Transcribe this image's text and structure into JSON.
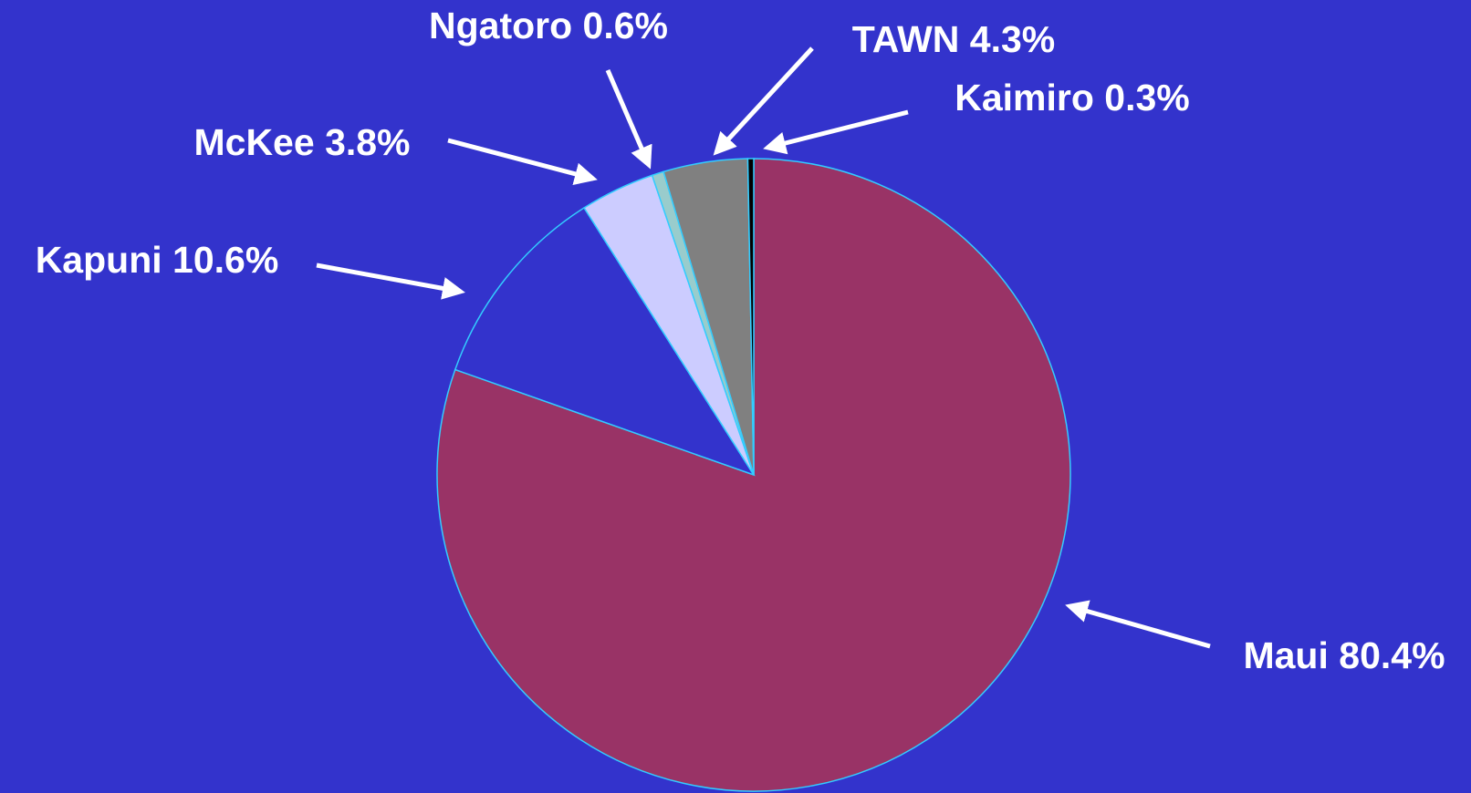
{
  "chart_data": {
    "type": "pie",
    "categories": [
      "Maui",
      "Kapuni",
      "McKee",
      "Ngatoro",
      "TAWN",
      "Kaimiro"
    ],
    "values": [
      80.4,
      10.6,
      3.8,
      0.6,
      4.3,
      0.3
    ],
    "value_labels": [
      "80.4%",
      "10.6%",
      "3.8%",
      "0.6%",
      "4.3%",
      "0.3%"
    ],
    "colors": [
      "#993366",
      "#3333cc",
      "#ccccff",
      "#99cccc",
      "#808080",
      "#000000"
    ]
  }
}
